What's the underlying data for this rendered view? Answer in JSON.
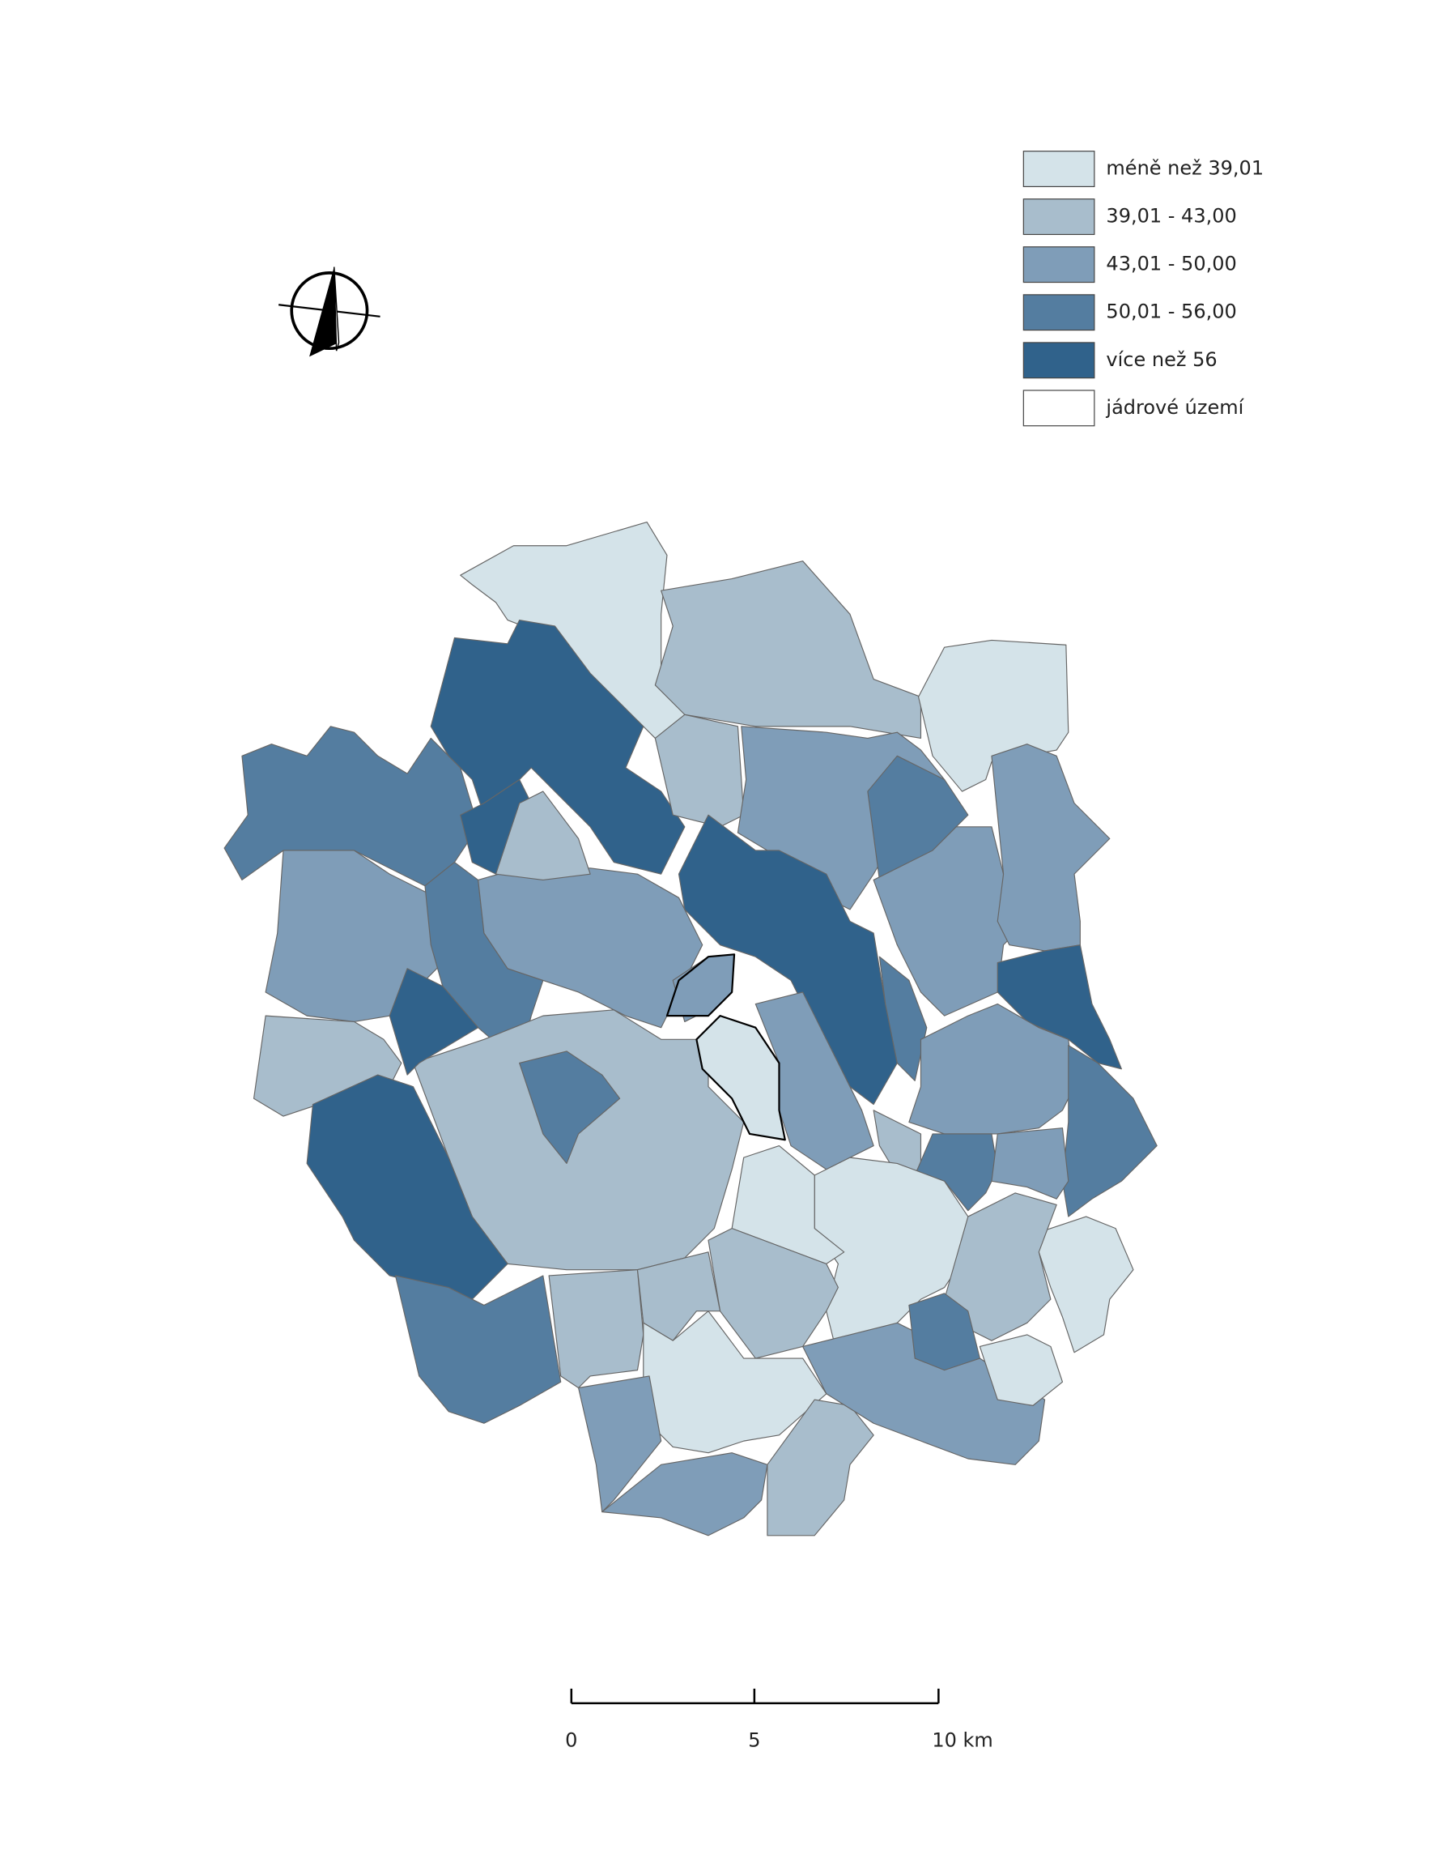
{
  "legend": [
    {
      "label": "méně než 39,01",
      "color": "#d4e3e9"
    },
    {
      "label": "39,01 - 43,00",
      "color": "#a8bdcc"
    },
    {
      "label": "43,01 - 50,00",
      "color": "#7f9db8"
    },
    {
      "label": "50,01 - 56,00",
      "color": "#547da0"
    },
    {
      "label": "více než 56",
      "color": "#30628b"
    },
    {
      "label": "jádrové území",
      "color": "#ffffff"
    }
  ],
  "scale_bar": {
    "labels": [
      "0",
      "5",
      "10 km"
    ]
  }
}
